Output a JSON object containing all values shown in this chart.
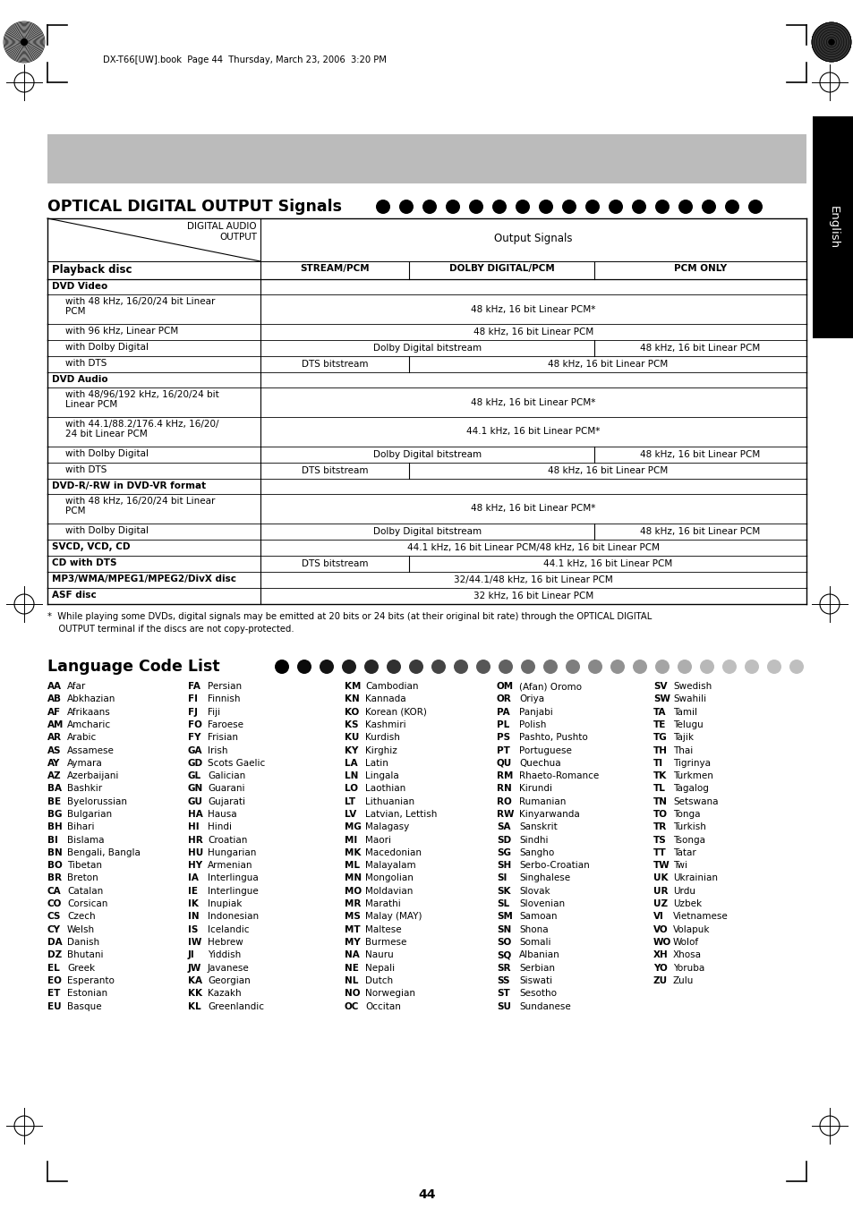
{
  "page_header": "DX-T66[UW].book  Page 44  Thursday, March 23, 2006  3:20 PM",
  "section1_title": "OPTICAL DIGITAL OUTPUT Signals",
  "section2_title": "Language Code List",
  "col_headers": [
    "STREAM/PCM",
    "DOLBY DIGITAL/PCM",
    "PCM ONLY"
  ],
  "footnote": "*  While playing some DVDs, digital signals may be emitted at 20 bits or 24 bits (at their original bit rate) through the OPTICAL DIGITAL\n    OUTPUT terminal if the discs are not copy-protected.",
  "language_codes": [
    [
      "AA",
      "Afar",
      "FA",
      "Persian",
      "KM",
      "Cambodian",
      "OM",
      "(Afan) Oromo",
      "SV",
      "Swedish"
    ],
    [
      "AB",
      "Abkhazian",
      "FI",
      "Finnish",
      "KN",
      "Kannada",
      "OR",
      "Oriya",
      "SW",
      "Swahili"
    ],
    [
      "AF",
      "Afrikaans",
      "FJ",
      "Fiji",
      "KO",
      "Korean (KOR)",
      "PA",
      "Panjabi",
      "TA",
      "Tamil"
    ],
    [
      "AM",
      "Amcharic",
      "FO",
      "Faroese",
      "KS",
      "Kashmiri",
      "PL",
      "Polish",
      "TE",
      "Telugu"
    ],
    [
      "AR",
      "Arabic",
      "FY",
      "Frisian",
      "KU",
      "Kurdish",
      "PS",
      "Pashto, Pushto",
      "TG",
      "Tajik"
    ],
    [
      "AS",
      "Assamese",
      "GA",
      "Irish",
      "KY",
      "Kirghiz",
      "PT",
      "Portuguese",
      "TH",
      "Thai"
    ],
    [
      "AY",
      "Aymara",
      "GD",
      "Scots Gaelic",
      "LA",
      "Latin",
      "QU",
      "Quechua",
      "TI",
      "Tigrinya"
    ],
    [
      "AZ",
      "Azerbaijani",
      "GL",
      "Galician",
      "LN",
      "Lingala",
      "RM",
      "Rhaeto-Romance",
      "TK",
      "Turkmen"
    ],
    [
      "BA",
      "Bashkir",
      "GN",
      "Guarani",
      "LO",
      "Laothian",
      "RN",
      "Kirundi",
      "TL",
      "Tagalog"
    ],
    [
      "BE",
      "Byelorussian",
      "GU",
      "Gujarati",
      "LT",
      "Lithuanian",
      "RO",
      "Rumanian",
      "TN",
      "Setswana"
    ],
    [
      "BG",
      "Bulgarian",
      "HA",
      "Hausa",
      "LV",
      "Latvian, Lettish",
      "RW",
      "Kinyarwanda",
      "TO",
      "Tonga"
    ],
    [
      "BH",
      "Bihari",
      "HI",
      "Hindi",
      "MG",
      "Malagasy",
      "SA",
      "Sanskrit",
      "TR",
      "Turkish"
    ],
    [
      "BI",
      "Bislama",
      "HR",
      "Croatian",
      "MI",
      "Maori",
      "SD",
      "Sindhi",
      "TS",
      "Tsonga"
    ],
    [
      "BN",
      "Bengali, Bangla",
      "HU",
      "Hungarian",
      "MK",
      "Macedonian",
      "SG",
      "Sangho",
      "TT",
      "Tatar"
    ],
    [
      "BO",
      "Tibetan",
      "HY",
      "Armenian",
      "ML",
      "Malayalam",
      "SH",
      "Serbo-Croatian",
      "TW",
      "Twi"
    ],
    [
      "BR",
      "Breton",
      "IA",
      "Interlingua",
      "MN",
      "Mongolian",
      "SI",
      "Singhalese",
      "UK",
      "Ukrainian"
    ],
    [
      "CA",
      "Catalan",
      "IE",
      "Interlingue",
      "MO",
      "Moldavian",
      "SK",
      "Slovak",
      "UR",
      "Urdu"
    ],
    [
      "CO",
      "Corsican",
      "IK",
      "Inupiak",
      "MR",
      "Marathi",
      "SL",
      "Slovenian",
      "UZ",
      "Uzbek"
    ],
    [
      "CS",
      "Czech",
      "IN",
      "Indonesian",
      "MS",
      "Malay (MAY)",
      "SM",
      "Samoan",
      "VI",
      "Vietnamese"
    ],
    [
      "CY",
      "Welsh",
      "IS",
      "Icelandic",
      "MT",
      "Maltese",
      "SN",
      "Shona",
      "VO",
      "Volapuk"
    ],
    [
      "DA",
      "Danish",
      "IW",
      "Hebrew",
      "MY",
      "Burmese",
      "SO",
      "Somali",
      "WO",
      "Wolof"
    ],
    [
      "DZ",
      "Bhutani",
      "JI",
      "Yiddish",
      "NA",
      "Nauru",
      "SQ",
      "Albanian",
      "XH",
      "Xhosa"
    ],
    [
      "EL",
      "Greek",
      "JW",
      "Javanese",
      "NE",
      "Nepali",
      "SR",
      "Serbian",
      "YO",
      "Yoruba"
    ],
    [
      "EO",
      "Esperanto",
      "KA",
      "Georgian",
      "NL",
      "Dutch",
      "SS",
      "Siswati",
      "ZU",
      "Zulu"
    ],
    [
      "ET",
      "Estonian",
      "KK",
      "Kazakh",
      "NO",
      "Norwegian",
      "ST",
      "Sesotho",
      "",
      ""
    ],
    [
      "EU",
      "Basque",
      "KL",
      "Greenlandic",
      "OC",
      "Occitan",
      "SU",
      "Sundanese",
      "",
      ""
    ]
  ],
  "page_number": "44",
  "bg_color": "#ffffff"
}
